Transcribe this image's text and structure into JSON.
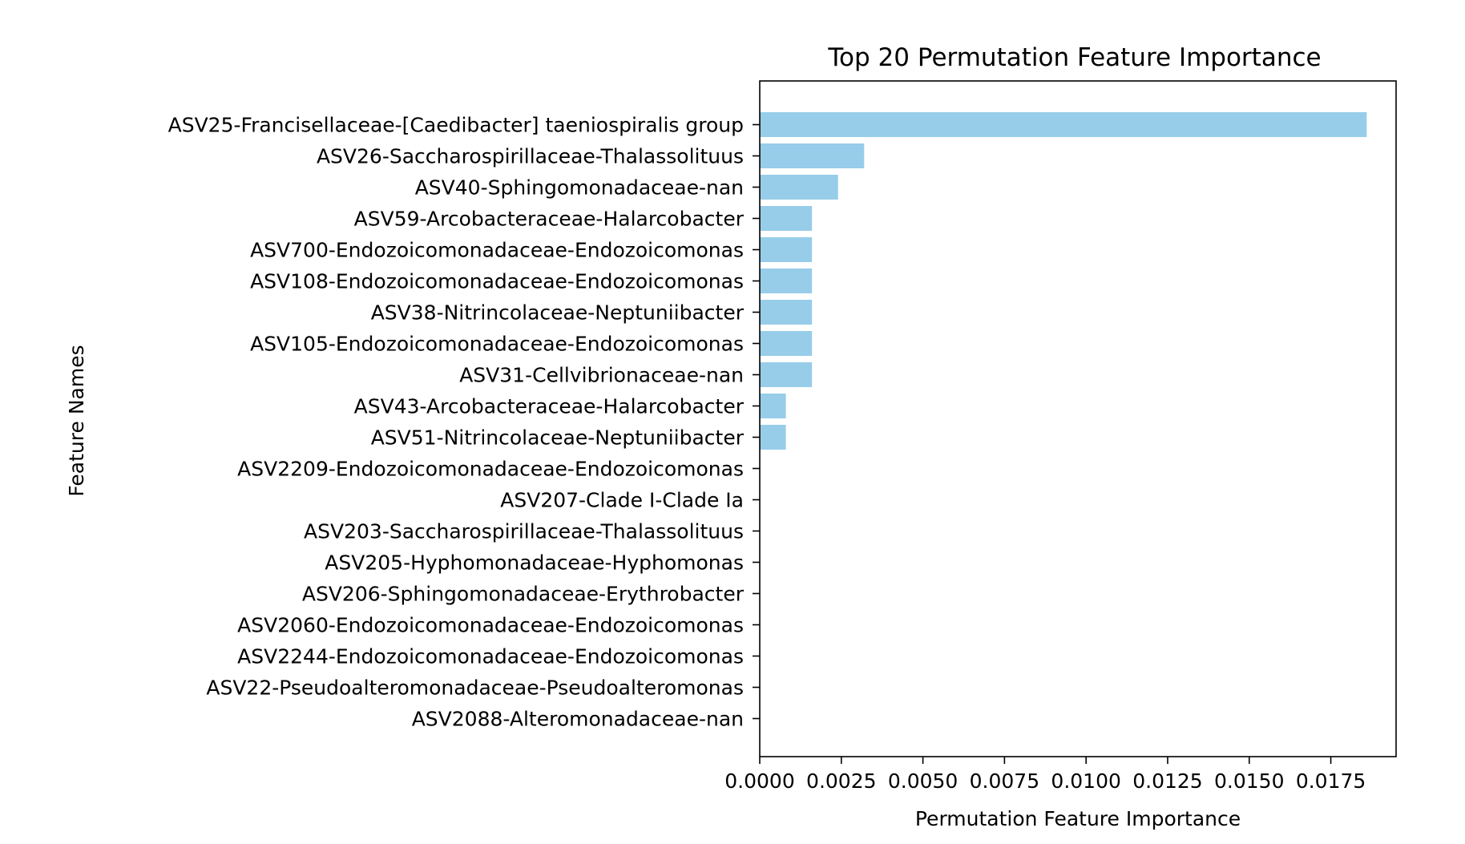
{
  "chart_data": {
    "type": "bar",
    "orientation": "horizontal",
    "title": "Top 20 Permutation Feature Importance",
    "xlabel": "Permutation Feature Importance",
    "ylabel": "Feature Names",
    "xlim": [
      0,
      0.0195
    ],
    "xticks": [
      "0.0000",
      "0.0025",
      "0.0050",
      "0.0075",
      "0.0100",
      "0.0125",
      "0.0150",
      "0.0175"
    ],
    "xtick_values": [
      0,
      0.0025,
      0.005,
      0.0075,
      0.01,
      0.0125,
      0.015,
      0.0175
    ],
    "categories": [
      "ASV25-Francisellaceae-[Caedibacter] taeniospiralis group",
      "ASV26-Saccharospirillaceae-Thalassolituus",
      "ASV40-Sphingomonadaceae-nan",
      "ASV59-Arcobacteraceae-Halarcobacter",
      "ASV700-Endozoicomonadaceae-Endozoicomonas",
      "ASV108-Endozoicomonadaceae-Endozoicomonas",
      "ASV38-Nitrincolaceae-Neptuniibacter",
      "ASV105-Endozoicomonadaceae-Endozoicomonas",
      "ASV31-Cellvibrionaceae-nan",
      "ASV43-Arcobacteraceae-Halarcobacter",
      "ASV51-Nitrincolaceae-Neptuniibacter",
      "ASV2209-Endozoicomonadaceae-Endozoicomonas",
      "ASV207-Clade I-Clade Ia",
      "ASV203-Saccharospirillaceae-Thalassolituus",
      "ASV205-Hyphomonadaceae-Hyphomonas",
      "ASV206-Sphingomonadaceae-Erythrobacter",
      "ASV2060-Endozoicomonadaceae-Endozoicomonas",
      "ASV2244-Endozoicomonadaceae-Endozoicomonas",
      "ASV22-Pseudoalteromonadaceae-Pseudoalteromonas",
      "ASV2088-Alteromonadaceae-nan"
    ],
    "values": [
      0.0186,
      0.0032,
      0.0024,
      0.0016,
      0.0016,
      0.0016,
      0.0016,
      0.0016,
      0.0016,
      0.0008,
      0.0008,
      0,
      0,
      0,
      0,
      0,
      0,
      0,
      0,
      0
    ],
    "bar_color": "#97cde9",
    "grid": false,
    "legend": false
  }
}
